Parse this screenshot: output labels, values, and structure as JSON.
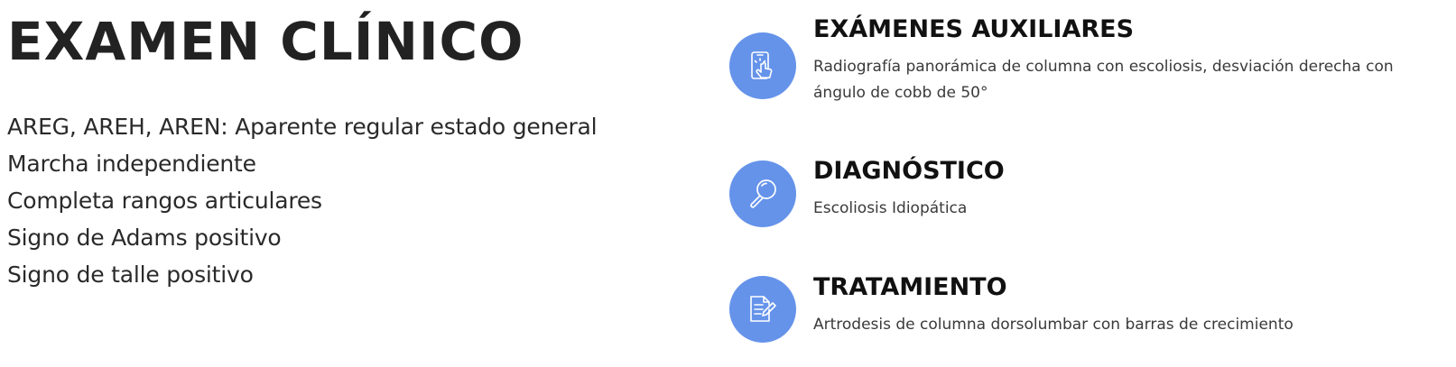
{
  "examen_clinico": {
    "title": "EXAMEN CLÍNICO",
    "findings": [
      "AREG, AREH, AREN: Aparente regular estado general",
      "Marcha independiente",
      "Completa rangos articulares",
      "Signo de Adams positivo",
      "Signo de talle positivo"
    ]
  },
  "sections": [
    {
      "icon": "touch-screen-icon",
      "title": "EXÁMENES AUXILIARES",
      "description": "Radiografía panorámica de columna con escoliosis, desviación derecha con ángulo de cobb de 50°"
    },
    {
      "icon": "magnifier-icon",
      "title": "DIAGNÓSTICO",
      "description": "Escoliosis Idiopática"
    },
    {
      "icon": "document-edit-icon",
      "title": "TRATAMIENTO",
      "description": "Artrodesis de columna dorsolumbar con barras de crecimiento"
    }
  ],
  "colors": {
    "icon_background": "#6593ea",
    "heading": "#111111",
    "text": "#3a3a3a"
  }
}
